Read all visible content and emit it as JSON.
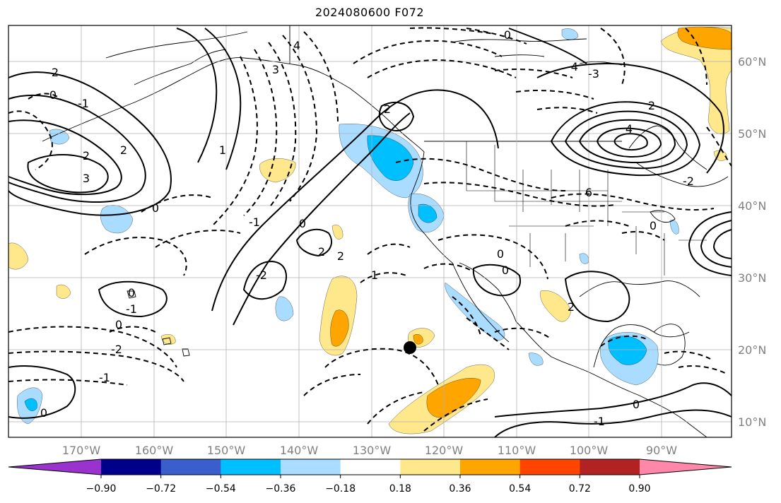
{
  "title": "2024080600 F072",
  "map": {
    "lon_ticks": [
      "170°W",
      "160°W",
      "150°W",
      "140°W",
      "130°W",
      "120°W",
      "110°W",
      "100°W",
      "90°W"
    ],
    "lat_ticks": [
      "60°N",
      "50°N",
      "40°N",
      "30°N",
      "20°N",
      "10°N"
    ],
    "contour_labels": [
      "2",
      "0",
      "-1",
      "2",
      "3",
      "2",
      "3",
      "4",
      "0",
      "1",
      "2",
      "-1",
      "0",
      "-1",
      "0",
      "-2",
      "-1",
      "0",
      "-2",
      "2",
      "0",
      "1",
      "2",
      "0",
      "-4",
      "-3",
      "2",
      "4",
      "6",
      "-2",
      "0",
      "2",
      "0",
      "0",
      "-1",
      "0"
    ]
  },
  "colorbar": {
    "labels": [
      "−0.90",
      "−0.72",
      "−0.54",
      "−0.36",
      "−0.18",
      "0.18",
      "0.36",
      "0.54",
      "0.72",
      "0.90"
    ],
    "colors": [
      "#9a32cd",
      "#00008b",
      "#3a5fcd",
      "#00bfff",
      "#a9dcff",
      "#ffffff",
      "#ffe78c",
      "#ffa500",
      "#ff4500",
      "#b22222",
      "#ff88aa"
    ]
  },
  "colors": {
    "neg_light": "#a9dcff",
    "neg_mid": "#00bfff",
    "pos_light": "#ffe78c",
    "pos_mid": "#ffa500",
    "grid": "#b0b0b0"
  }
}
